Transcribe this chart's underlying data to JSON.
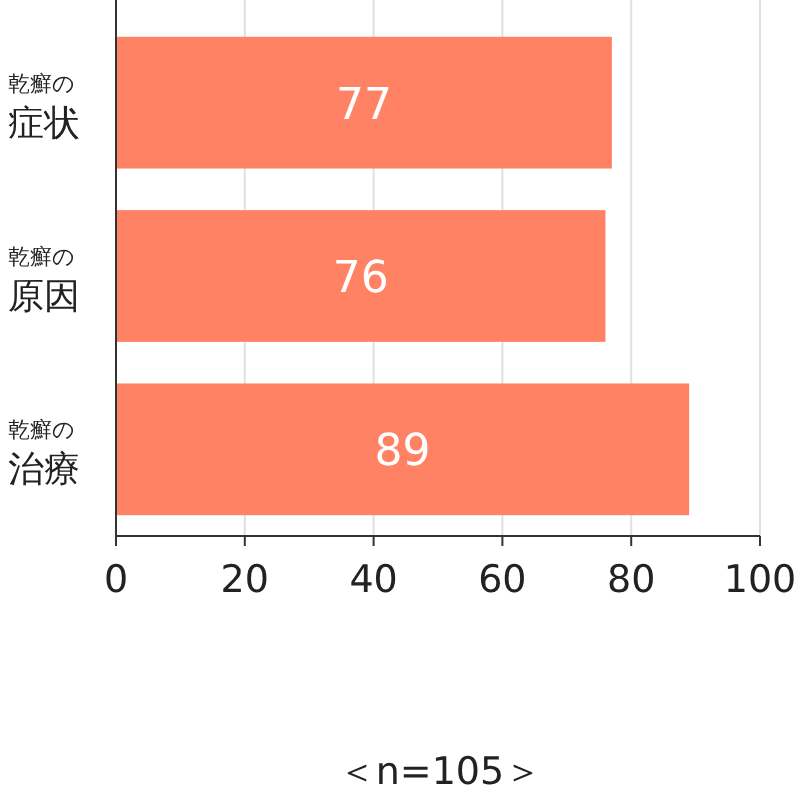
{
  "chart_data": {
    "type": "bar",
    "orientation": "horizontal",
    "categories": [
      "乾癬の症状",
      "乾癬の原因",
      "乾癬の治療"
    ],
    "values": [
      77,
      76,
      89
    ],
    "color": "#ff8264",
    "data_labels": true,
    "xlim": [
      0,
      100
    ],
    "xticks": [
      0,
      20,
      40,
      60,
      80,
      100
    ],
    "grid": "x",
    "annotations": [
      "＜n=105＞"
    ]
  }
}
